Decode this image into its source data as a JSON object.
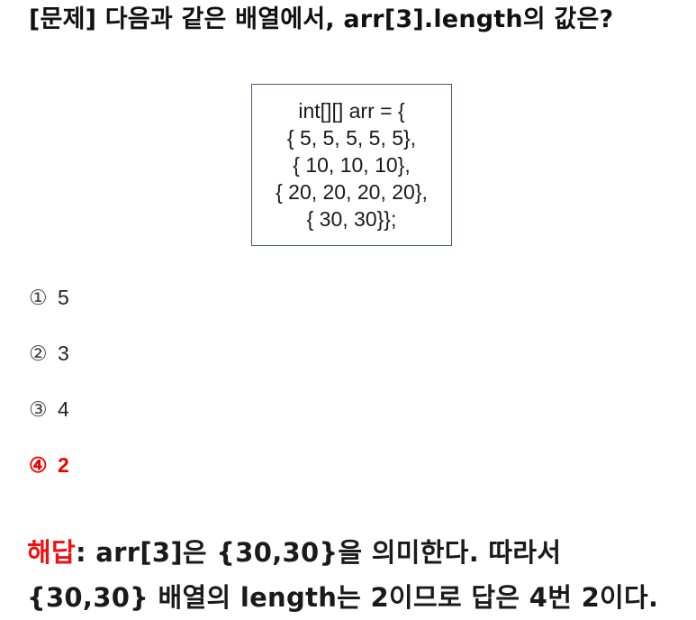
{
  "question": {
    "title": "[문제] 다음과 같은 배열에서, arr[3].length의 값은?"
  },
  "code": {
    "lines": [
      "int[][] arr = {",
      "{ 5, 5, 5, 5, 5},",
      "{ 10, 10, 10},",
      "{ 20, 20, 20, 20},",
      "{ 30, 30}};"
    ]
  },
  "options": [
    {
      "num": "①",
      "text": "5",
      "selected": false
    },
    {
      "num": "②",
      "text": "3",
      "selected": false
    },
    {
      "num": "③",
      "text": "4",
      "selected": false
    },
    {
      "num": "④",
      "text": "2",
      "selected": true
    }
  ],
  "explanation": {
    "label": "해답",
    "line1": ": arr[3]은 {30,30}을 의미한다. 따라서",
    "line2": "{30,30} 배열의 length는 2이므로 답은 4번 2이다."
  },
  "colors": {
    "answer": "#ee0000",
    "box_border": "#3f5f7f"
  }
}
